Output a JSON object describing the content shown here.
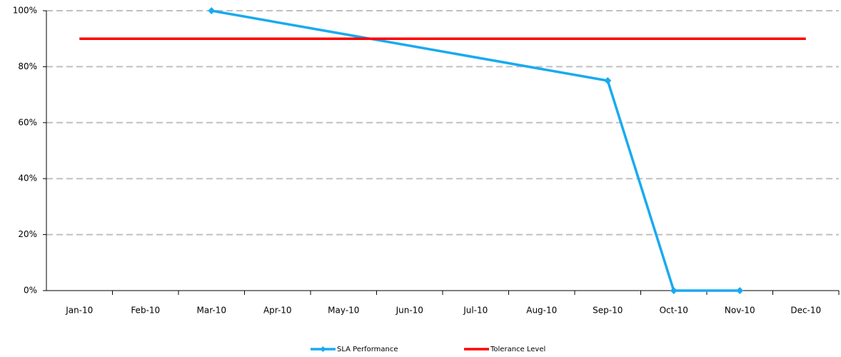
{
  "chart_data": {
    "type": "line",
    "categories": [
      "Jan-10",
      "Feb-10",
      "Mar-10",
      "Apr-10",
      "May-10",
      "Jun-10",
      "Jul-10",
      "Aug-10",
      "Sep-10",
      "Oct-10",
      "Nov-10",
      "Dec-10"
    ],
    "series": [
      {
        "name": "SLA Performance",
        "color": "#19aaf0",
        "marker": "diamond",
        "connect_gaps": true,
        "values": [
          null,
          null,
          100,
          null,
          null,
          null,
          null,
          null,
          75,
          0,
          0,
          null
        ]
      },
      {
        "name": "Tolerance Level",
        "color": "#ff0000",
        "marker": "none",
        "values": [
          90,
          90,
          90,
          90,
          90,
          90,
          90,
          90,
          90,
          90,
          90,
          90
        ]
      }
    ],
    "ylim": [
      0,
      100
    ],
    "yticks": [
      {
        "value": 0,
        "label": "0%"
      },
      {
        "value": 20,
        "label": "20%"
      },
      {
        "value": 40,
        "label": "40%"
      },
      {
        "value": 60,
        "label": "60%"
      },
      {
        "value": 80,
        "label": "80%"
      },
      {
        "value": 100,
        "label": "100%"
      }
    ],
    "grid": true,
    "legend": "bottom"
  }
}
